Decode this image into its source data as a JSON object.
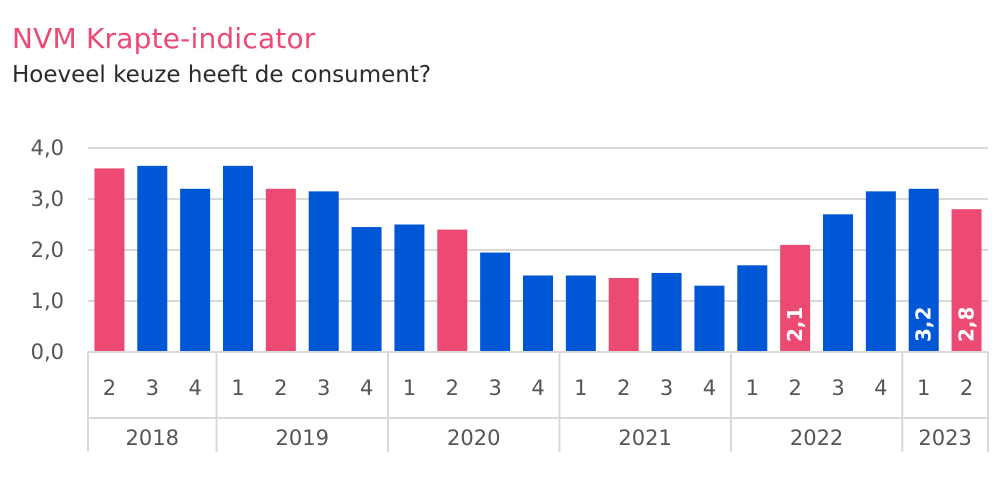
{
  "header": {
    "title": "NVM Krapte-indicator",
    "subtitle": "Hoeveel keuze heeft de consument?"
  },
  "colors": {
    "pink": "#ec4a73",
    "blue": "#0057d6",
    "grid": "#d9d9d9",
    "axis_text": "#555555"
  },
  "chart_data": {
    "type": "bar",
    "title": "NVM Krapte-indicator",
    "subtitle": "Hoeveel keuze heeft de consument?",
    "ylim": [
      0,
      4
    ],
    "yticks": [
      "0,0",
      "1,0",
      "2,0",
      "3,0",
      "4,0"
    ],
    "ytick_values": [
      0,
      1,
      2,
      3,
      4
    ],
    "grid": true,
    "categories": [
      "2",
      "3",
      "4",
      "1",
      "2",
      "3",
      "4",
      "1",
      "2",
      "3",
      "4",
      "1",
      "2",
      "3",
      "4",
      "1",
      "2",
      "3",
      "4",
      "1",
      "2"
    ],
    "years": [
      {
        "label": "2018",
        "quarters": 3
      },
      {
        "label": "2019",
        "quarters": 4
      },
      {
        "label": "2020",
        "quarters": 4
      },
      {
        "label": "2021",
        "quarters": 4
      },
      {
        "label": "2022",
        "quarters": 4
      },
      {
        "label": "2023",
        "quarters": 2
      }
    ],
    "values": [
      3.6,
      3.65,
      3.2,
      3.65,
      3.2,
      3.15,
      2.45,
      2.5,
      2.4,
      1.95,
      1.5,
      1.5,
      1.45,
      1.55,
      1.3,
      1.7,
      2.1,
      2.7,
      3.15,
      3.2,
      2.8
    ],
    "bar_colors": [
      "pink",
      "blue",
      "blue",
      "blue",
      "pink",
      "blue",
      "blue",
      "blue",
      "pink",
      "blue",
      "blue",
      "blue",
      "pink",
      "blue",
      "blue",
      "blue",
      "pink",
      "blue",
      "blue",
      "blue",
      "pink"
    ],
    "data_labels": [
      {
        "index": 16,
        "text": "2,1"
      },
      {
        "index": 19,
        "text": "3,2"
      },
      {
        "index": 20,
        "text": "2,8"
      }
    ]
  }
}
